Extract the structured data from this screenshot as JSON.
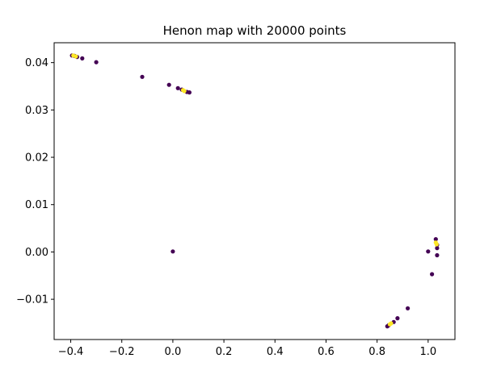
{
  "chart_data": {
    "type": "scatter",
    "title": "Henon map with 20000 points",
    "xlabel": "",
    "ylabel": "",
    "xlim": [
      -0.465,
      1.105
    ],
    "ylim": [
      -0.0185,
      0.0442
    ],
    "x_ticks": [
      -0.4,
      -0.2,
      0.0,
      0.2,
      0.4,
      0.6,
      0.8,
      1.0
    ],
    "x_tick_labels": [
      "−0.4",
      "−0.2",
      "0.0",
      "0.2",
      "0.4",
      "0.6",
      "0.8",
      "1.0"
    ],
    "y_ticks": [
      -0.01,
      0.0,
      0.01,
      0.02,
      0.03,
      0.04
    ],
    "y_tick_labels": [
      "−0.01",
      "0.00",
      "0.01",
      "0.02",
      "0.03",
      "0.04"
    ],
    "grid": false,
    "colors": {
      "early": "#440154",
      "late": "#fde725"
    },
    "series": [
      {
        "color_key": "early",
        "points": [
          [
            -0.395,
            0.0415
          ],
          [
            -0.385,
            0.0414
          ],
          [
            -0.375,
            0.0412
          ],
          [
            -0.355,
            0.0409
          ],
          [
            -0.3,
            0.0401
          ],
          [
            -0.12,
            0.037
          ],
          [
            -0.015,
            0.0353
          ],
          [
            0.02,
            0.0346
          ],
          [
            0.035,
            0.0343
          ],
          [
            0.055,
            0.0338
          ],
          [
            0.065,
            0.0337
          ],
          [
            0.0,
            0.0001
          ],
          [
            1.0,
            0.0001
          ],
          [
            1.03,
            0.0027
          ],
          [
            1.035,
            0.0015
          ],
          [
            1.035,
            0.0008
          ],
          [
            1.035,
            -0.0007
          ],
          [
            1.015,
            -0.0047
          ],
          [
            0.92,
            -0.0119
          ],
          [
            0.88,
            -0.014
          ],
          [
            0.865,
            -0.0148
          ],
          [
            0.845,
            -0.0155
          ],
          [
            0.84,
            -0.0157
          ]
        ]
      },
      {
        "color_key": "late",
        "points": [
          [
            -0.39,
            0.0415
          ],
          [
            -0.38,
            0.0413
          ],
          [
            0.04,
            0.0342
          ],
          [
            0.045,
            0.034
          ],
          [
            1.03,
            0.002
          ],
          [
            1.033,
            0.0016
          ],
          [
            0.855,
            -0.0151
          ],
          [
            0.85,
            -0.0153
          ]
        ]
      }
    ]
  }
}
